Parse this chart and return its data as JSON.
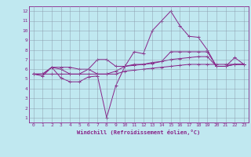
{
  "bg_color": "#c0e8f0",
  "line_color": "#882288",
  "grid_color": "#8899aa",
  "xlabel": "Windchill (Refroidissement éolien,°C)",
  "xlim": [
    -0.5,
    23.5
  ],
  "ylim": [
    0.5,
    12.5
  ],
  "xticks": [
    0,
    1,
    2,
    3,
    4,
    5,
    6,
    7,
    8,
    9,
    10,
    11,
    12,
    13,
    14,
    15,
    16,
    17,
    18,
    19,
    20,
    21,
    22,
    23
  ],
  "yticks": [
    1,
    2,
    3,
    4,
    5,
    6,
    7,
    8,
    9,
    10,
    11,
    12
  ],
  "series": [
    [
      5.5,
      5.3,
      6.2,
      5.1,
      4.7,
      4.7,
      5.2,
      5.3,
      1.0,
      4.3,
      6.3,
      7.8,
      7.6,
      10.0,
      11.0,
      12.0,
      10.5,
      9.4,
      9.3,
      8.0,
      6.3,
      6.3,
      7.2,
      6.5
    ],
    [
      5.5,
      5.5,
      6.2,
      6.2,
      6.2,
      6.0,
      6.0,
      7.0,
      7.0,
      6.3,
      6.3,
      6.5,
      6.5,
      6.7,
      6.8,
      7.8,
      7.8,
      7.8,
      7.8,
      7.8,
      6.3,
      6.3,
      6.5,
      6.5
    ],
    [
      5.5,
      5.5,
      5.5,
      5.5,
      5.5,
      5.5,
      5.5,
      5.5,
      5.5,
      5.5,
      5.8,
      5.9,
      6.0,
      6.1,
      6.2,
      6.3,
      6.4,
      6.5,
      6.5,
      6.5,
      6.5,
      6.5,
      6.5,
      6.5
    ],
    [
      5.5,
      5.5,
      6.2,
      6.0,
      5.5,
      5.5,
      6.0,
      5.5,
      5.5,
      5.8,
      6.3,
      6.4,
      6.5,
      6.6,
      6.8,
      7.0,
      7.1,
      7.2,
      7.3,
      7.3,
      6.3,
      6.3,
      6.5,
      6.5
    ]
  ],
  "figsize": [
    3.2,
    2.0
  ],
  "dpi": 100
}
